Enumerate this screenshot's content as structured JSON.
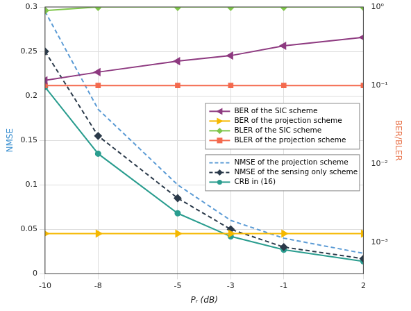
{
  "chart_data": {
    "type": "line",
    "x_label": "Pᵣ (dB)",
    "y_label": "NMSE",
    "y2_label": "BER/BLER",
    "x": [
      -10,
      -8,
      -5,
      -3,
      -1,
      2
    ],
    "xlim": [
      -10,
      2
    ],
    "xticks": [
      -10,
      -8,
      -5,
      -3,
      -1,
      2
    ],
    "ylim": [
      0,
      0.3
    ],
    "yticks": [
      0,
      0.05,
      0.1,
      0.15,
      0.2,
      0.25,
      0.3
    ],
    "y2lim": [
      0.0004,
      1
    ],
    "y2ticks": [
      {
        "value": 0.001,
        "label": "10⁻³"
      },
      {
        "value": 0.01,
        "label": "10⁻²"
      },
      {
        "value": 0.1,
        "label": "10⁻¹"
      },
      {
        "value": 1,
        "label": "10⁰"
      }
    ],
    "log": "y2",
    "grid": true,
    "legend": "right",
    "series": [
      {
        "name": "BER of the SIC scheme",
        "color": "#8e3a80",
        "marker": "triangle-left",
        "line_style": "solid",
        "axis": "y2",
        "values": [
          0.116,
          0.148,
          0.204,
          0.24,
          0.32,
          0.41
        ]
      },
      {
        "name": "BER of the projection scheme",
        "color": "#f5b800",
        "marker": "triangle-right",
        "line_style": "solid",
        "axis": "y2",
        "values": [
          0.0013,
          0.0013,
          0.0013,
          0.0013,
          0.0013,
          0.0013
        ]
      },
      {
        "name": "BLER of the SIC scheme",
        "color": "#7fc64b",
        "marker": "diamond",
        "line_style": "solid",
        "axis": "y2",
        "values": [
          0.9,
          1,
          1,
          1,
          1,
          1
        ]
      },
      {
        "name": "BLER of the projection scheme",
        "color": "#f46a4e",
        "marker": "square",
        "line_style": "solid",
        "axis": "y2",
        "values": [
          0.1,
          0.1,
          0.1,
          0.1,
          0.1,
          0.1
        ]
      },
      {
        "name": "NMSE of the projection scheme",
        "color": "#5b9bd5",
        "marker": "none",
        "line_style": "dashed",
        "axis": "y",
        "values": [
          0.295,
          0.185,
          0.1,
          0.06,
          0.04,
          0.023
        ]
      },
      {
        "name": "NMSE of the sensing only scheme",
        "color": "#2b3a4a",
        "marker": "diamond",
        "line_style": "dashed",
        "axis": "y",
        "values": [
          0.25,
          0.155,
          0.085,
          0.05,
          0.03,
          0.017
        ]
      },
      {
        "name": "CRB in (16)",
        "color": "#2a9d8f",
        "marker": "circle",
        "line_style": "solid",
        "axis": "y",
        "values": [
          0.21,
          0.135,
          0.068,
          0.042,
          0.027,
          0.014
        ]
      }
    ]
  }
}
